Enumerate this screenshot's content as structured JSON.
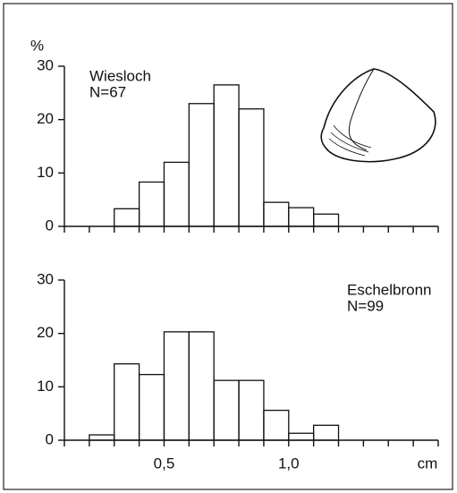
{
  "chart_data": [
    {
      "type": "histogram",
      "ylabel": "%",
      "annotations": [
        "Wiesloch",
        "N=67"
      ],
      "bins": [
        0.3,
        0.4,
        0.5,
        0.6,
        0.7,
        0.8,
        0.9,
        1.0,
        1.1,
        1.2
      ],
      "values": [
        3.3,
        8.3,
        12,
        23,
        26.5,
        22,
        4.5,
        3.5,
        2.3
      ],
      "xlim": [
        0.1,
        1.6
      ],
      "ylim": [
        0,
        30
      ],
      "yticks": [
        0,
        10,
        20,
        30
      ],
      "minor_xticks": [
        0.1,
        0.2,
        0.3,
        0.4,
        0.5,
        0.6,
        0.7,
        0.8,
        0.9,
        1.0,
        1.1,
        1.2,
        1.3,
        1.4,
        1.5,
        1.6
      ]
    },
    {
      "type": "histogram",
      "xlabel": "cm",
      "annotations": [
        "Eschelbronn",
        "N=99"
      ],
      "bins": [
        0.2,
        0.3,
        0.4,
        0.5,
        0.6,
        0.7,
        0.8,
        0.9,
        1.0,
        1.1,
        1.2
      ],
      "values": [
        1,
        14.3,
        12.3,
        20.3,
        20.3,
        11.2,
        11.2,
        5.6,
        1.3,
        2.8
      ],
      "xlim": [
        0.1,
        1.6
      ],
      "ylim": [
        0,
        30
      ],
      "yticks": [
        0,
        10,
        20,
        30
      ],
      "xticks": [
        {
          "value": 0.5,
          "label": "0,5"
        },
        {
          "value": 1.0,
          "label": "1,0"
        }
      ],
      "minor_xticks": [
        0.1,
        0.2,
        0.3,
        0.4,
        0.6,
        0.7,
        0.8,
        0.9,
        1.1,
        1.2,
        1.3,
        1.4,
        1.5,
        1.6
      ]
    }
  ]
}
